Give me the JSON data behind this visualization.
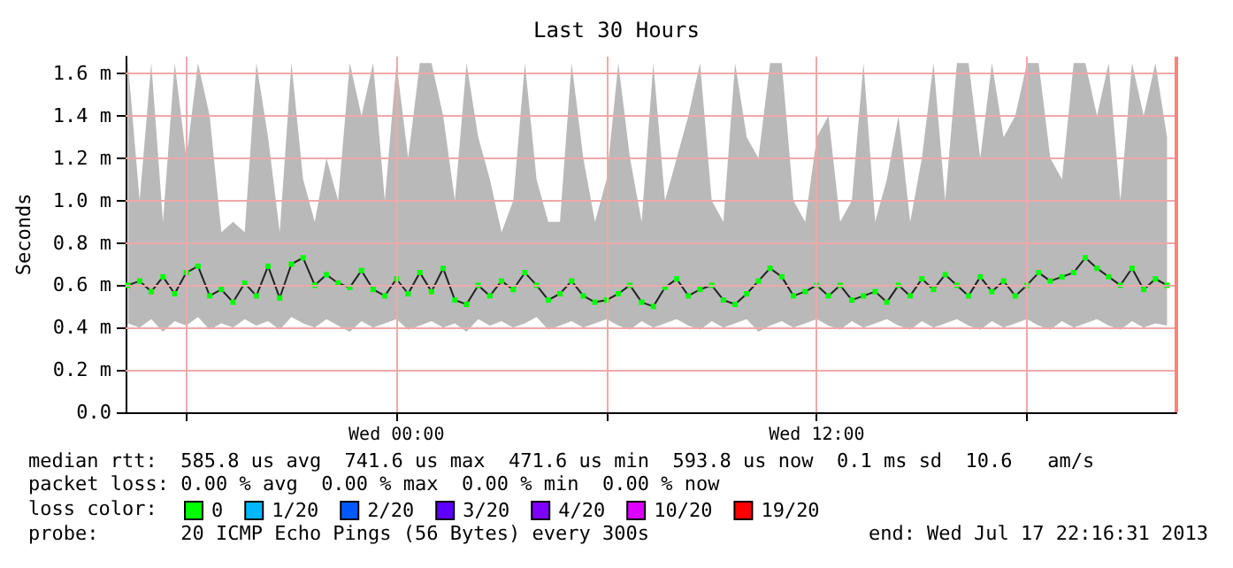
{
  "chart_data": {
    "type": "line",
    "title": "Last 30 Hours",
    "ylabel": "Seconds",
    "legend_title": "loss color:",
    "legend": "bottom",
    "grid": true,
    "marker": "square",
    "line_style": "solid",
    "xlim": [
      "2013-07-16T16:16",
      "2013-07-17T22:16"
    ],
    "xticks": [
      {
        "value": "2013-07-16T18:00",
        "label": null
      },
      {
        "value": "2013-07-17T00:00",
        "label": "Wed 00:00"
      },
      {
        "value": "2013-07-17T06:00",
        "label": null
      },
      {
        "value": "2013-07-17T12:00",
        "label": "Wed 12:00"
      },
      {
        "value": "2013-07-17T18:00",
        "label": null
      }
    ],
    "ylim": [
      0,
      1.68
    ],
    "yticks": [
      {
        "value": 0,
        "label": "0.0"
      },
      {
        "value": 0.2,
        "label": "0.2 m"
      },
      {
        "value": 0.4,
        "label": "0.4 m"
      },
      {
        "value": 0.6,
        "label": "0.6 m"
      },
      {
        "value": 0.8,
        "label": "0.8 m"
      },
      {
        "value": 1.0,
        "label": "1.0 m"
      },
      {
        "value": 1.2,
        "label": "1.2 m"
      },
      {
        "value": 1.4,
        "label": "1.4 m"
      },
      {
        "value": 1.6,
        "label": "1.6 m"
      }
    ],
    "ref_lines": [
      {
        "axis": "x",
        "value": "2013-07-17T22:16",
        "label": null,
        "color": "#ff8080"
      }
    ],
    "series": [
      {
        "name": "0",
        "color": "#00ff00",
        "x": [
          "2013-07-16T16:20",
          "2013-07-16T16:40",
          "2013-07-16T17:00",
          "2013-07-16T17:20",
          "2013-07-16T17:40",
          "2013-07-16T18:00",
          "2013-07-16T18:20",
          "2013-07-16T18:40",
          "2013-07-16T19:00",
          "2013-07-16T19:20",
          "2013-07-16T19:40",
          "2013-07-16T20:00",
          "2013-07-16T20:20",
          "2013-07-16T20:40",
          "2013-07-16T21:00",
          "2013-07-16T21:20",
          "2013-07-16T21:40",
          "2013-07-16T22:00",
          "2013-07-16T22:20",
          "2013-07-16T22:40",
          "2013-07-16T23:00",
          "2013-07-16T23:20",
          "2013-07-16T23:40",
          "2013-07-17T00:00",
          "2013-07-17T00:20",
          "2013-07-17T00:40",
          "2013-07-17T01:00",
          "2013-07-17T01:20",
          "2013-07-17T01:40",
          "2013-07-17T02:00",
          "2013-07-17T02:20",
          "2013-07-17T02:40",
          "2013-07-17T03:00",
          "2013-07-17T03:20",
          "2013-07-17T03:40",
          "2013-07-17T04:00",
          "2013-07-17T04:20",
          "2013-07-17T04:40",
          "2013-07-17T05:00",
          "2013-07-17T05:20",
          "2013-07-17T05:40",
          "2013-07-17T06:00",
          "2013-07-17T06:20",
          "2013-07-17T06:40",
          "2013-07-17T07:00",
          "2013-07-17T07:20",
          "2013-07-17T07:40",
          "2013-07-17T08:00",
          "2013-07-17T08:20",
          "2013-07-17T08:40",
          "2013-07-17T09:00",
          "2013-07-17T09:20",
          "2013-07-17T09:40",
          "2013-07-17T10:00",
          "2013-07-17T10:20",
          "2013-07-17T10:40",
          "2013-07-17T11:00",
          "2013-07-17T11:20",
          "2013-07-17T11:40",
          "2013-07-17T12:00",
          "2013-07-17T12:20",
          "2013-07-17T12:40",
          "2013-07-17T13:00",
          "2013-07-17T13:20",
          "2013-07-17T13:40",
          "2013-07-17T14:00",
          "2013-07-17T14:20",
          "2013-07-17T14:40",
          "2013-07-17T15:00",
          "2013-07-17T15:20",
          "2013-07-17T15:40",
          "2013-07-17T16:00",
          "2013-07-17T16:20",
          "2013-07-17T16:40",
          "2013-07-17T17:00",
          "2013-07-17T17:20",
          "2013-07-17T17:40",
          "2013-07-17T18:00",
          "2013-07-17T18:20",
          "2013-07-17T18:40",
          "2013-07-17T19:00",
          "2013-07-17T19:20",
          "2013-07-17T19:40",
          "2013-07-17T20:00",
          "2013-07-17T20:20",
          "2013-07-17T20:40",
          "2013-07-17T21:00",
          "2013-07-17T21:20",
          "2013-07-17T21:40",
          "2013-07-17T22:00"
        ],
        "values": [
          0.6,
          0.62,
          0.57,
          0.64,
          0.56,
          0.66,
          0.69,
          0.55,
          0.58,
          0.52,
          0.61,
          0.55,
          0.69,
          0.54,
          0.7,
          0.73,
          0.6,
          0.65,
          0.61,
          0.59,
          0.67,
          0.58,
          0.55,
          0.63,
          0.56,
          0.66,
          0.57,
          0.68,
          0.53,
          0.51,
          0.6,
          0.55,
          0.62,
          0.58,
          0.66,
          0.6,
          0.53,
          0.56,
          0.62,
          0.55,
          0.52,
          0.53,
          0.56,
          0.6,
          0.52,
          0.5,
          0.59,
          0.63,
          0.55,
          0.58,
          0.6,
          0.53,
          0.51,
          0.56,
          0.62,
          0.68,
          0.64,
          0.55,
          0.57,
          0.6,
          0.55,
          0.6,
          0.53,
          0.55,
          0.57,
          0.52,
          0.6,
          0.55,
          0.63,
          0.58,
          0.65,
          0.6,
          0.55,
          0.64,
          0.57,
          0.62,
          0.55,
          0.6,
          0.66,
          0.62,
          0.64,
          0.66,
          0.73,
          0.68,
          0.64,
          0.6,
          0.68,
          0.58,
          0.63,
          0.6
        ],
        "lower": [
          0.42,
          0.4,
          0.44,
          0.38,
          0.43,
          0.41,
          0.45,
          0.39,
          0.42,
          0.4,
          0.44,
          0.41,
          0.43,
          0.39,
          0.45,
          0.42,
          0.4,
          0.44,
          0.41,
          0.38,
          0.43,
          0.4,
          0.42,
          0.44,
          0.39,
          0.41,
          0.43,
          0.4,
          0.42,
          0.38,
          0.44,
          0.41,
          0.43,
          0.4,
          0.42,
          0.45,
          0.39,
          0.41,
          0.43,
          0.4,
          0.42,
          0.44,
          0.41,
          0.39,
          0.43,
          0.4,
          0.42,
          0.44,
          0.41,
          0.39,
          0.43,
          0.4,
          0.42,
          0.44,
          0.38,
          0.41,
          0.43,
          0.4,
          0.42,
          0.44,
          0.41,
          0.39,
          0.43,
          0.4,
          0.42,
          0.44,
          0.41,
          0.39,
          0.43,
          0.4,
          0.42,
          0.44,
          0.41,
          0.39,
          0.43,
          0.4,
          0.42,
          0.44,
          0.41,
          0.39,
          0.43,
          0.4,
          0.42,
          0.44,
          0.41,
          0.39,
          0.43,
          0.4,
          0.42,
          0.41
        ],
        "upper": [
          1.65,
          1.0,
          1.65,
          0.9,
          1.65,
          1.2,
          1.65,
          1.4,
          0.85,
          0.9,
          0.85,
          1.65,
          1.3,
          0.85,
          1.65,
          1.1,
          0.9,
          1.2,
          1.0,
          1.65,
          1.4,
          1.65,
          1.0,
          1.65,
          1.2,
          1.65,
          1.65,
          1.4,
          1.0,
          1.65,
          1.3,
          1.1,
          0.85,
          1.0,
          1.65,
          1.1,
          0.9,
          0.9,
          1.65,
          1.2,
          0.9,
          1.1,
          1.65,
          1.2,
          0.9,
          1.65,
          1.0,
          1.2,
          1.4,
          1.65,
          1.0,
          0.9,
          1.65,
          1.3,
          1.2,
          1.65,
          1.65,
          1.0,
          0.9,
          1.3,
          1.4,
          0.9,
          1.0,
          1.65,
          0.9,
          1.1,
          1.4,
          0.9,
          1.2,
          1.65,
          1.0,
          1.65,
          1.65,
          1.2,
          1.65,
          1.3,
          1.4,
          1.65,
          1.65,
          1.2,
          1.1,
          1.65,
          1.65,
          1.4,
          1.65,
          1.0,
          1.65,
          1.4,
          1.65,
          1.3
        ]
      },
      {
        "name": "1/20",
        "color": "#00b8ff"
      },
      {
        "name": "2/20",
        "color": "#0059ff"
      },
      {
        "name": "3/20",
        "color": "#5e00ff"
      },
      {
        "name": "4/20",
        "color": "#7e00ff"
      },
      {
        "name": "10/20",
        "color": "#dd00ff"
      },
      {
        "name": "19/20",
        "color": "#ff0000"
      }
    ],
    "annotations": [
      "median rtt:  585.8 us avg  741.6 us max  471.6 us min  593.8 us now  0.1 ms sd  10.6   am/s",
      "packet loss: 0.00 % avg  0.00 % max  0.00 % min  0.00 % now",
      "probe:       20 ICMP Echo Pings (56 Bytes) every 300s",
      "end: Wed Jul 17 22:16:31 2013"
    ]
  }
}
